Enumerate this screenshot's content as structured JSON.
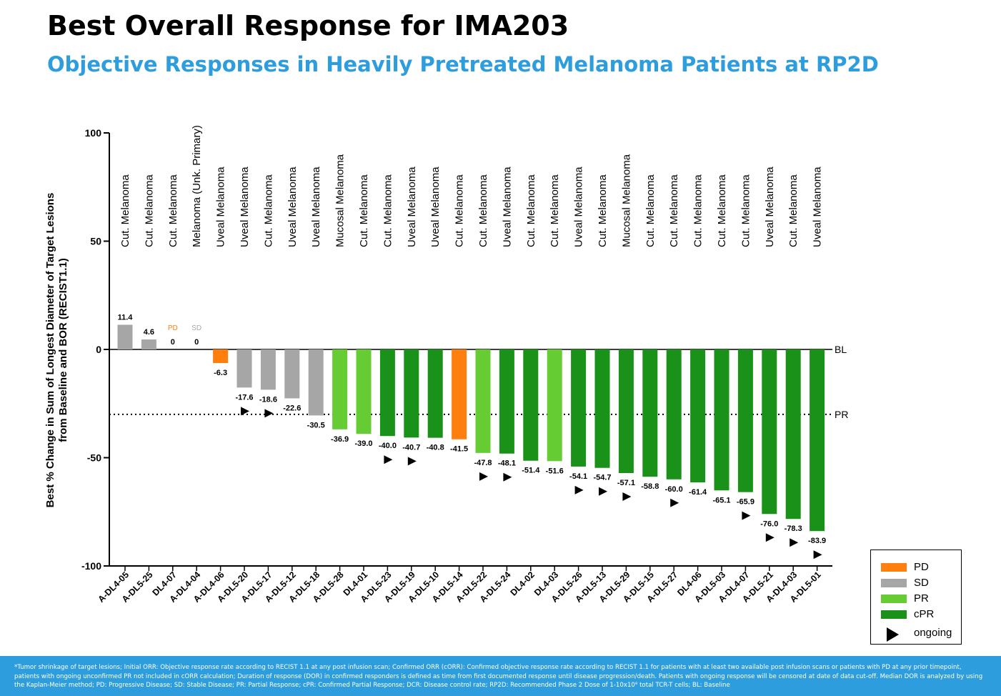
{
  "title": "Best Overall Response for IMA203",
  "subtitle": "Objective Responses in Heavily Pretreated Melanoma Patients at RP2D",
  "colors": {
    "PD": "#ff7f0e",
    "SD": "#a6a6a6",
    "PR": "#66cc33",
    "cPR": "#1a9119",
    "subtitle": "#2e9ddd",
    "footer_bg": "#2e9ddd"
  },
  "legend": [
    {
      "label": "PD",
      "category": "PD",
      "color": "#ff7f0e"
    },
    {
      "label": "SD",
      "category": "SD",
      "color": "#a6a6a6"
    },
    {
      "label": "PR",
      "category": "PR",
      "color": "#66cc33"
    },
    {
      "label": "cPR",
      "category": "cPR",
      "color": "#1a9119"
    },
    {
      "label": "ongoing",
      "icon": "ongoing-triangle-icon"
    }
  ],
  "chart_data": {
    "type": "bar",
    "ylabel": "Best % Change in Sum of Longest Diameter of Target Lesions from Baseline and BOR (RECIST1.1)",
    "ylim": [
      -100,
      100
    ],
    "yticks": [
      100,
      50,
      0,
      -50,
      -100
    ],
    "reference_lines": [
      {
        "label": "BL",
        "value": 0,
        "style": "solid"
      },
      {
        "label": "PR",
        "value": -30,
        "style": "dotted"
      }
    ],
    "zero_value_annotations": {
      "A-DL4-04": "SD",
      "DL4-07": "PD"
    },
    "categories": [
      "A-DL4-05",
      "A-DL5-25",
      "DL4-07",
      "A-DL4-04",
      "A-DL4-06",
      "A-DL5-20",
      "A-DL5-17",
      "A-DL5-12",
      "A-DL5-18",
      "A-DL5-28",
      "DL4-01",
      "A-DL5-23",
      "A-DL5-19",
      "A-DL5-10",
      "A-DL5-14",
      "A-DL5-22",
      "A-DL5-24",
      "DL4-02",
      "DL4-03",
      "A-DL5-26",
      "A-DL5-13",
      "A-DL5-29",
      "A-DL5-15",
      "A-DL5-27",
      "DL4-06",
      "A-DL5-03",
      "A-DL4-07",
      "A-DL5-21",
      "A-DL4-03",
      "A-DL5-01"
    ],
    "values": [
      11.4,
      4.6,
      0,
      0,
      -6.3,
      -17.6,
      -18.6,
      -22.6,
      -30.5,
      -36.9,
      -39.0,
      -40.0,
      -40.7,
      -40.8,
      -41.5,
      -47.8,
      -48.1,
      -51.4,
      -51.6,
      -54.1,
      -54.7,
      -57.1,
      -58.8,
      -60.0,
      -61.4,
      -65.1,
      -65.9,
      -76.0,
      -78.3,
      -83.9
    ],
    "value_labels": [
      "11.4",
      "4.6",
      "0",
      "0",
      "-6.3",
      "-17.6",
      "-18.6",
      "-22.6",
      "-30.5",
      "-36.9",
      "-39.0",
      "-40.0",
      "-40.7",
      "-40.8",
      "-41.5",
      "-47.8",
      "-48.1",
      "-51.4",
      "-51.6",
      "-54.1",
      "-54.7",
      "-57.1",
      "-58.8",
      "-60.0",
      "-61.4",
      "-65.1",
      "-65.9",
      "-76.0",
      "-78.3",
      "-83.9"
    ],
    "response": [
      "SD",
      "SD",
      "PD",
      "SD",
      "PD",
      "SD",
      "SD",
      "SD",
      "SD",
      "PR",
      "PR",
      "cPR",
      "cPR",
      "cPR",
      "PD",
      "PR",
      "cPR",
      "cPR",
      "PR",
      "cPR",
      "cPR",
      "cPR",
      "cPR",
      "cPR",
      "cPR",
      "cPR",
      "cPR",
      "cPR",
      "cPR",
      "cPR"
    ],
    "ongoing": [
      false,
      false,
      false,
      false,
      false,
      true,
      true,
      false,
      false,
      false,
      false,
      true,
      true,
      false,
      false,
      true,
      true,
      false,
      false,
      true,
      true,
      true,
      false,
      true,
      false,
      false,
      true,
      true,
      true,
      true
    ],
    "tumor_type": [
      "Cut. Melanoma",
      "Cut. Melanoma",
      "Cut. Melanoma",
      "Melanoma (Unk. Primary)",
      "Uveal Melanoma",
      "Uveal Melanoma",
      "Cut. Melanoma",
      "Uveal Melanoma",
      "Uveal Melanoma",
      "Mucosal Melanoma",
      "Cut. Melanoma",
      "Cut. Melanoma",
      "Uveal Melanoma",
      "Uveal Melanoma",
      "Cut. Melanoma",
      "Cut. Melanoma",
      "Uveal Melanoma",
      "Cut. Melanoma",
      "Cut. Melanoma",
      "Uveal Melanoma",
      "Cut. Melanoma",
      "Mucosal Melanoma",
      "Cut. Melanoma",
      "Cut. Melanoma",
      "Cut. Melanoma",
      "Cut. Melanoma",
      "Cut. Melanoma",
      "Uveal Melanoma",
      "Cut. Melanoma",
      "Uveal Melanoma"
    ]
  },
  "footer": "*Tumor shrinkage of target lesions; Initial ORR: Objective response rate according to RECIST 1.1 at any post infusion scan; Confirmed ORR (cORR): Confirmed objective response rate according to RECIST 1.1 for patients with at least two available post infusion scans or patients with PD at any prior timepoint, patients with ongoing unconfirmed PR not included in cORR calculation; Duration of response (DOR) in confirmed responders is defined as time from first documented response until disease progression/death. Patients with ongoing response will be censored at date of data cut-off. Median DOR is analyzed by using the Kaplan-Meier method; PD: Progressive Disease; SD: Stable Disease; PR: Partial Response; cPR: Confirmed Partial Response; DCR: Disease control rate; RP2D: Recommended Phase 2 Dose of 1-10x10⁹ total TCR-T cells; BL: Baseline"
}
